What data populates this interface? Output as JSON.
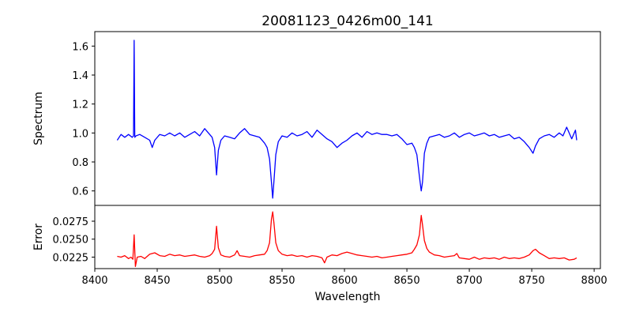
{
  "chart_data": [
    {
      "type": "line",
      "title": "20081123_0426m00_141",
      "xlabel": "Wavelength",
      "ylabel": "Spectrum",
      "xlim": [
        8400,
        8805
      ],
      "ylim": [
        0.5,
        1.7
      ],
      "x_ticks": [
        "8400",
        "8450",
        "8500",
        "8550",
        "8600",
        "8650",
        "8700",
        "8750",
        "8800"
      ],
      "y_ticks": [
        "0.6",
        "0.8",
        "1.0",
        "1.2",
        "1.4",
        "1.6"
      ],
      "grid": false,
      "series": [
        {
          "color": "#0000ff",
          "x": [
            8418,
            8421,
            8424,
            8427,
            8430,
            8431,
            8431.5,
            8432,
            8433,
            8436,
            8440,
            8444,
            8446,
            8448,
            8452,
            8456,
            8460,
            8464,
            8468,
            8472,
            8476,
            8480,
            8484,
            8488,
            8492,
            8494,
            8496,
            8497.5,
            8499,
            8501,
            8504,
            8508,
            8512,
            8516,
            8520,
            8524,
            8528,
            8532,
            8536,
            8538,
            8540,
            8541.5,
            8542.5,
            8543.5,
            8545,
            8547,
            8550,
            8554,
            8558,
            8562,
            8566,
            8570,
            8574,
            8578,
            8582,
            8586,
            8590,
            8594,
            8598,
            8602,
            8606,
            8610,
            8614,
            8618,
            8622,
            8626,
            8630,
            8634,
            8638,
            8642,
            8646,
            8650,
            8654,
            8656,
            8658,
            8660,
            8661.5,
            8662.5,
            8664,
            8666,
            8668,
            8672,
            8676,
            8680,
            8684,
            8688,
            8692,
            8696,
            8700,
            8704,
            8708,
            8712,
            8716,
            8720,
            8724,
            8728,
            8732,
            8736,
            8740,
            8744,
            8748,
            8751,
            8753,
            8756,
            8760,
            8764,
            8768,
            8772,
            8775,
            8778,
            8782,
            8785,
            8786
          ],
          "values": [
            0.95,
            0.99,
            0.97,
            0.99,
            0.97,
            0.98,
            1.64,
            0.97,
            0.98,
            0.99,
            0.97,
            0.95,
            0.9,
            0.95,
            0.99,
            0.98,
            1.0,
            0.98,
            1.0,
            0.97,
            0.99,
            1.01,
            0.98,
            1.03,
            0.99,
            0.97,
            0.9,
            0.71,
            0.88,
            0.95,
            0.98,
            0.97,
            0.96,
            1.0,
            1.03,
            0.99,
            0.98,
            0.97,
            0.93,
            0.9,
            0.82,
            0.66,
            0.55,
            0.67,
            0.85,
            0.94,
            0.98,
            0.97,
            1.0,
            0.98,
            0.99,
            1.01,
            0.97,
            1.02,
            0.99,
            0.96,
            0.94,
            0.9,
            0.93,
            0.95,
            0.98,
            1.0,
            0.97,
            1.01,
            0.99,
            1.0,
            0.99,
            0.99,
            0.98,
            0.99,
            0.96,
            0.92,
            0.93,
            0.9,
            0.85,
            0.7,
            0.6,
            0.66,
            0.86,
            0.93,
            0.97,
            0.98,
            0.99,
            0.97,
            0.98,
            1.0,
            0.97,
            0.99,
            1.0,
            0.98,
            0.99,
            1.0,
            0.98,
            0.99,
            0.97,
            0.98,
            0.99,
            0.96,
            0.97,
            0.94,
            0.9,
            0.86,
            0.91,
            0.96,
            0.98,
            0.99,
            0.97,
            1.0,
            0.98,
            1.04,
            0.96,
            1.02,
            0.95
          ]
        }
      ]
    },
    {
      "type": "line",
      "xlabel": "Wavelength",
      "ylabel": "Error",
      "xlim": [
        8400,
        8805
      ],
      "ylim": [
        0.0209,
        0.0297
      ],
      "x_ticks": [
        "8400",
        "8450",
        "8500",
        "8550",
        "8600",
        "8650",
        "8700",
        "8750",
        "8800"
      ],
      "y_ticks": [
        "0.0225",
        "0.0250",
        "0.0275"
      ],
      "grid": false,
      "series": [
        {
          "color": "#ff0000",
          "x": [
            8418,
            8421,
            8424,
            8427,
            8429,
            8430.5,
            8431.5,
            8432.5,
            8434,
            8437,
            8440,
            8444,
            8448,
            8452,
            8456,
            8460,
            8464,
            8468,
            8472,
            8476,
            8480,
            8484,
            8488,
            8492,
            8494,
            8496,
            8497.5,
            8499,
            8501,
            8504,
            8508,
            8512,
            8514,
            8516,
            8520,
            8524,
            8528,
            8532,
            8536,
            8538,
            8540,
            8541.5,
            8542.5,
            8543.5,
            8545,
            8547,
            8550,
            8554,
            8558,
            8562,
            8566,
            8570,
            8574,
            8578,
            8582,
            8584,
            8586,
            8590,
            8594,
            8598,
            8602,
            8606,
            8610,
            8614,
            8618,
            8622,
            8626,
            8630,
            8634,
            8638,
            8642,
            8646,
            8650,
            8654,
            8656,
            8658,
            8660,
            8661.5,
            8662.5,
            8664,
            8666,
            8668,
            8672,
            8676,
            8680,
            8684,
            8688,
            8690,
            8692,
            8696,
            8700,
            8704,
            8708,
            8712,
            8716,
            8720,
            8724,
            8728,
            8732,
            8736,
            8740,
            8744,
            8748,
            8751,
            8753,
            8756,
            8760,
            8764,
            8768,
            8772,
            8776,
            8780,
            8784,
            8786
          ],
          "values": [
            0.0226,
            0.0225,
            0.0227,
            0.0223,
            0.0225,
            0.0222,
            0.0256,
            0.0212,
            0.0225,
            0.0226,
            0.0223,
            0.0229,
            0.0231,
            0.0227,
            0.0226,
            0.0229,
            0.0227,
            0.0228,
            0.0226,
            0.0227,
            0.0228,
            0.0226,
            0.0225,
            0.0227,
            0.023,
            0.0236,
            0.0268,
            0.0238,
            0.0228,
            0.0226,
            0.0225,
            0.0228,
            0.0234,
            0.0227,
            0.0226,
            0.0225,
            0.0227,
            0.0228,
            0.0229,
            0.0234,
            0.0245,
            0.0278,
            0.0288,
            0.0272,
            0.0245,
            0.0234,
            0.0229,
            0.0227,
            0.0228,
            0.0226,
            0.0227,
            0.0225,
            0.0227,
            0.0226,
            0.0224,
            0.0217,
            0.0225,
            0.0228,
            0.0227,
            0.023,
            0.0232,
            0.023,
            0.0228,
            0.0227,
            0.0226,
            0.0225,
            0.0226,
            0.0224,
            0.0225,
            0.0226,
            0.0227,
            0.0228,
            0.0229,
            0.0231,
            0.0236,
            0.0242,
            0.0256,
            0.0283,
            0.027,
            0.0248,
            0.0237,
            0.0232,
            0.0228,
            0.0227,
            0.0225,
            0.0226,
            0.0227,
            0.023,
            0.0224,
            0.0223,
            0.0222,
            0.0225,
            0.0222,
            0.0224,
            0.0223,
            0.0224,
            0.0222,
            0.0225,
            0.0223,
            0.0224,
            0.0223,
            0.0225,
            0.0228,
            0.0234,
            0.0236,
            0.0231,
            0.0227,
            0.0223,
            0.0224,
            0.0223,
            0.0224,
            0.0221,
            0.0222,
            0.0224
          ]
        }
      ]
    }
  ]
}
